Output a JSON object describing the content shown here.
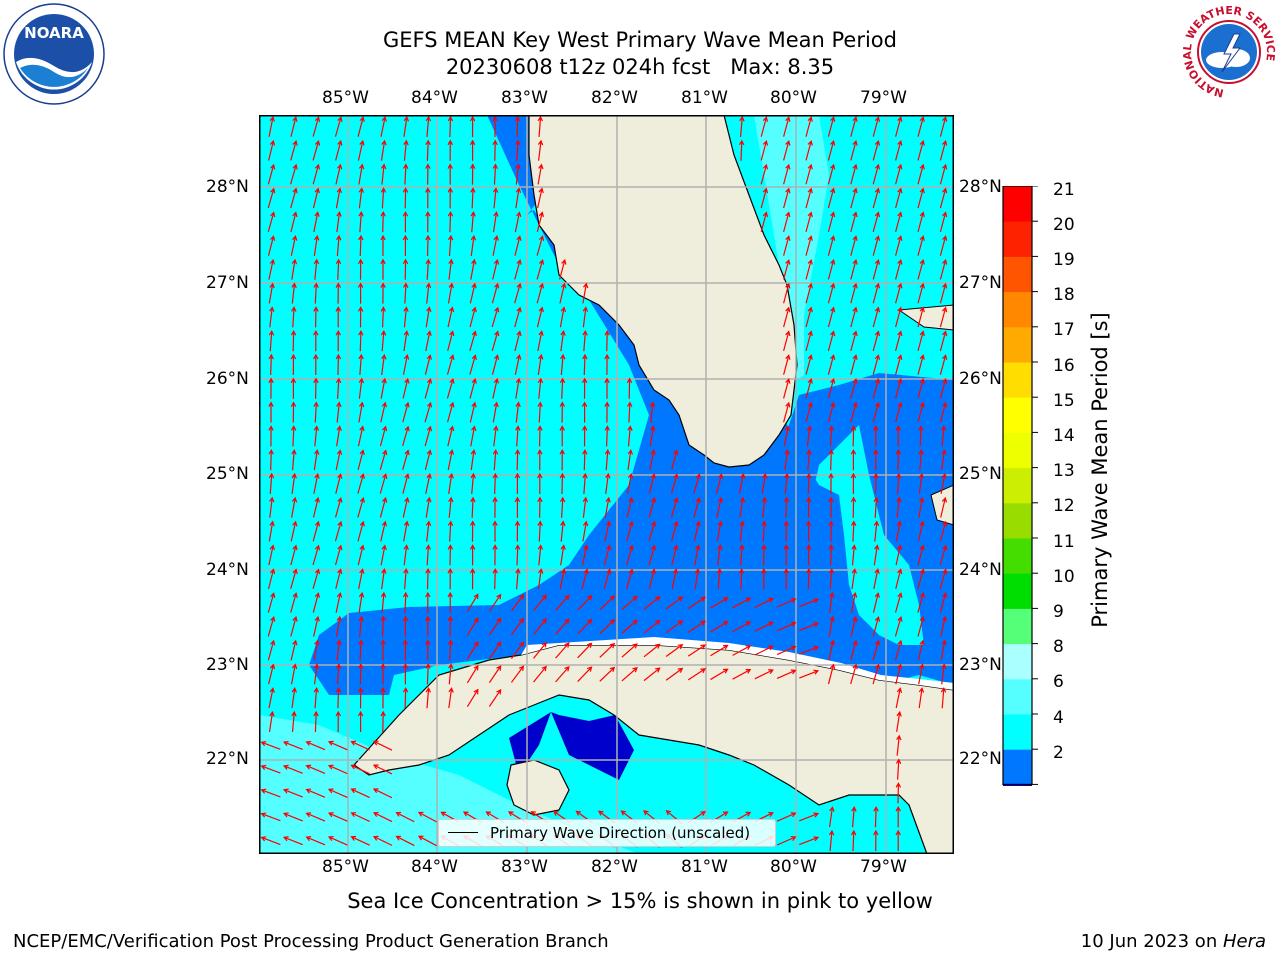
{
  "title": {
    "line1": "GEFS MEAN Key West Primary Wave Mean Period",
    "line2": "20230608 t12z 024h fcst   Max: 8.35"
  },
  "logos": {
    "left": {
      "text": "NOARA",
      "icon": "noaa-logo"
    },
    "right": {
      "icon": "national-weather-service-logo",
      "ring_text": "NATIONAL WEATHER SERVICE"
    }
  },
  "axes": {
    "lon_labels": [
      "85°W",
      "84°W",
      "83°W",
      "82°W",
      "81°W",
      "80°W",
      "79°W"
    ],
    "lat_labels": [
      "28°N",
      "27°N",
      "26°N",
      "25°N",
      "24°N",
      "23°N",
      "22°N"
    ]
  },
  "colorbar": {
    "label": "Primary Wave Mean Period [s]",
    "ticks": [
      "21",
      "20",
      "19",
      "18",
      "17",
      "16",
      "15",
      "14",
      "13",
      "12",
      "11",
      "10",
      "9",
      "8",
      "6",
      "4",
      "2"
    ],
    "colors": [
      "#0000cc",
      "#0077ff",
      "#00ffff",
      "#55ffff",
      "#aaffff",
      "#55ff77",
      "#00dd00",
      "#44dd00",
      "#99dd00",
      "#ccee00",
      "#eeff00",
      "#ffff00",
      "#ffdd00",
      "#ffaa00",
      "#ff8800",
      "#ff5500",
      "#ff2200",
      "#ff0000"
    ]
  },
  "colors": {
    "land": "#efeddb",
    "water_cyan": "#00ffff",
    "water_blue": "#0077ff",
    "water_light": "#55ffff",
    "water_deep": "#0000cc",
    "arrow": "#ff0000",
    "grid": "#b0b0b0"
  },
  "legend": {
    "label": "Primary Wave Direction (unscaled)"
  },
  "caption": "Sea Ice Concentration > 15% is shown in pink to yellow",
  "footer": {
    "left": "NCEP/EMC/Verification Post Processing Product Generation Branch",
    "right_date": "10 Jun 2023 on ",
    "right_host": "Hera"
  }
}
